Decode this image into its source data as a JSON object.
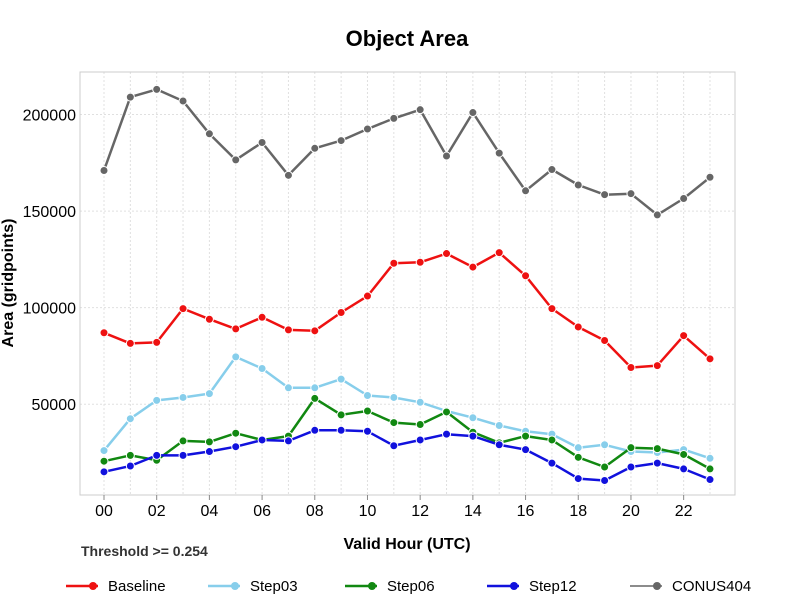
{
  "chart_data": {
    "type": "line",
    "title": "Object Area",
    "xlabel": "Valid Hour (UTC)",
    "ylabel": "Area (gridpoints)",
    "annotation": "Threshold >= 0.254",
    "x": [
      "00",
      "01",
      "02",
      "03",
      "04",
      "05",
      "06",
      "07",
      "08",
      "09",
      "10",
      "11",
      "12",
      "13",
      "14",
      "15",
      "16",
      "17",
      "18",
      "19",
      "20",
      "21",
      "22",
      "23"
    ],
    "x_tick_labels": [
      "00",
      "02",
      "04",
      "06",
      "08",
      "10",
      "12",
      "14",
      "16",
      "18",
      "20",
      "22"
    ],
    "y_ticks": [
      50000,
      100000,
      150000,
      200000
    ],
    "y_tick_labels": [
      "50000",
      "100000",
      "150000",
      "200000"
    ],
    "ylim": [
      3000,
      222000
    ],
    "grid": true,
    "legend_position": "bottom",
    "series": [
      {
        "name": "Baseline",
        "color": "#ee1111",
        "values": [
          87000,
          81500,
          82000,
          99500,
          94000,
          89000,
          95000,
          88500,
          88000,
          97500,
          106000,
          123000,
          123500,
          128000,
          121000,
          128500,
          116500,
          99500,
          90000,
          83000,
          69000,
          70000,
          85500,
          73500
        ]
      },
      {
        "name": "Step03",
        "color": "#87ceeb",
        "values": [
          26000,
          42500,
          52000,
          53500,
          55500,
          74500,
          68500,
          58500,
          58500,
          63000,
          54500,
          53500,
          51000,
          46500,
          43000,
          39000,
          36000,
          34500,
          27500,
          29000,
          25500,
          25000,
          26500,
          22000
        ]
      },
      {
        "name": "Step06",
        "color": "#118811",
        "values": [
          20500,
          23500,
          21000,
          31000,
          30500,
          35000,
          31500,
          33500,
          53000,
          44500,
          46500,
          40500,
          39500,
          46000,
          35500,
          30000,
          33500,
          31500,
          22500,
          17500,
          27500,
          27000,
          24000,
          16500
        ]
      },
      {
        "name": "Step12",
        "color": "#1111dd",
        "values": [
          15000,
          18000,
          23500,
          23500,
          25500,
          28000,
          31500,
          31000,
          36500,
          36500,
          36000,
          28500,
          31500,
          34500,
          33500,
          29000,
          26500,
          19500,
          11500,
          10500,
          17500,
          19500,
          16500,
          11000
        ]
      },
      {
        "name": "CONUS404",
        "color": "#666666",
        "values": [
          171000,
          209000,
          213000,
          207000,
          190000,
          176500,
          185500,
          168500,
          182500,
          186500,
          192500,
          198000,
          202500,
          178500,
          201000,
          180000,
          160500,
          171500,
          163500,
          158500,
          159000,
          148000,
          156500,
          167500
        ]
      }
    ]
  }
}
